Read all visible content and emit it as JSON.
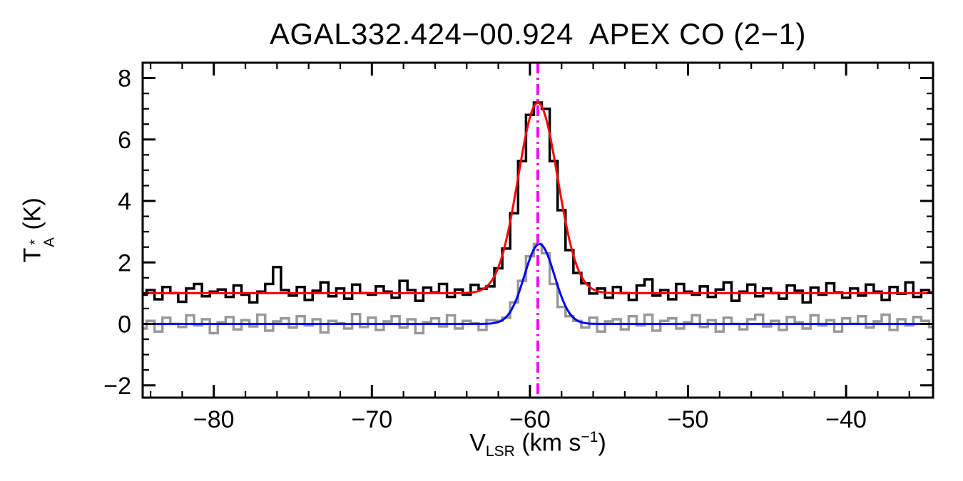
{
  "labels": {
    "y_symbol": "T",
    "y_sup": "*",
    "y_sub": "A",
    "y_unit": " (K)",
    "x_symbol": "V",
    "x_sub": "LSR",
    "x_unit_pre": " (km s",
    "x_sup": "−1",
    "x_unit_post": ")"
  },
  "chart_data": {
    "type": "line",
    "title": "AGAL332.424−00.924  APEX CO (2−1)",
    "xlabel": "V_LSR (km s^-1)",
    "ylabel": "T_A^* (K)",
    "xlim": [
      -84.5,
      -34.5
    ],
    "ylim": [
      -2.4,
      8.5
    ],
    "x_major_ticks": [
      -80,
      -70,
      -60,
      -50,
      -40
    ],
    "x_minor_step": 2,
    "y_major_ticks": [
      -2,
      0,
      2,
      4,
      6,
      8
    ],
    "y_minor_step": 0.5,
    "grid": false,
    "legend": false,
    "x_start": -84.5,
    "dx": 0.5,
    "series": [
      {
        "name": "offset-spectrum",
        "type": "histogram",
        "color": "#999999",
        "line_width": 3.5,
        "values": [
          -0.15,
          0.1,
          -0.25,
          0.2,
          0.0,
          -0.1,
          0.28,
          -0.05,
          0.15,
          -0.3,
          0.05,
          0.22,
          -0.18,
          0.12,
          -0.08,
          0.3,
          -0.22,
          0.08,
          0.18,
          -0.12,
          0.25,
          -0.05,
          0.15,
          -0.28,
          0.1,
          0.02,
          -0.15,
          0.32,
          -0.1,
          0.2,
          -0.2,
          0.08,
          0.25,
          -0.12,
          0.15,
          -0.3,
          0.05,
          0.18,
          -0.08,
          0.28,
          -0.15,
          0.1,
          0.02,
          -0.2,
          0.12,
          0.1,
          0.2,
          0.7,
          1.4,
          2.2,
          2.6,
          2.3,
          1.3,
          0.55,
          0.25,
          0.1,
          -0.12,
          0.2,
          -0.25,
          0.08,
          0.15,
          -0.18,
          0.25,
          -0.05,
          0.3,
          -0.22,
          0.1,
          0.18,
          -0.15,
          0.05,
          0.28,
          -0.1,
          0.12,
          -0.25,
          0.2,
          0.0,
          -0.18,
          0.15,
          0.3,
          -0.08,
          0.1,
          -0.2,
          0.22,
          0.05,
          -0.15,
          0.28,
          -0.05,
          0.12,
          -0.25,
          0.18,
          0.0,
          0.25,
          -0.12,
          0.08,
          0.3,
          -0.2,
          0.15,
          -0.05,
          0.22,
          0.1,
          -0.1
        ]
      },
      {
        "name": "observed-spectrum",
        "type": "histogram",
        "color": "#000000",
        "line_width": 3.5,
        "values": [
          0.95,
          1.1,
          0.8,
          1.2,
          1.0,
          0.72,
          1.15,
          1.3,
          0.9,
          1.05,
          1.12,
          0.88,
          1.25,
          0.95,
          0.7,
          1.05,
          1.3,
          1.85,
          1.1,
          0.92,
          1.2,
          0.78,
          1.08,
          1.35,
          0.9,
          1.15,
          0.82,
          1.28,
          1.0,
          0.95,
          1.22,
          1.05,
          0.85,
          1.4,
          1.1,
          0.75,
          1.18,
          1.02,
          1.3,
          0.88,
          1.12,
          0.95,
          1.27,
          1.14,
          1.22,
          1.81,
          2.45,
          3.6,
          5.3,
          6.8,
          7.2,
          7.0,
          5.3,
          3.7,
          2.4,
          1.66,
          1.32,
          0.99,
          1.15,
          0.85,
          1.2,
          1.0,
          0.78,
          1.25,
          1.45,
          0.92,
          1.1,
          0.8,
          1.3,
          1.05,
          0.95,
          1.22,
          0.88,
          1.12,
          1.35,
          0.75,
          1.05,
          1.28,
          0.9,
          1.15,
          1.0,
          0.82,
          1.25,
          1.08,
          0.7,
          1.18,
          0.95,
          1.32,
          1.02,
          0.85,
          1.15,
          0.92,
          1.28,
          1.05,
          0.78,
          1.2,
          0.98,
          1.35,
          0.88,
          1.1,
          1.02
        ]
      },
      {
        "name": "gaussian-fit-offset",
        "type": "gaussian",
        "color": "#0000ff",
        "line_width": 3,
        "baseline": 0.0,
        "amplitude": 2.6,
        "center": -59.4,
        "sigma": 0.95
      },
      {
        "name": "gaussian-fit-main",
        "type": "gaussian",
        "color": "#ff0000",
        "line_width": 3,
        "baseline": 1.0,
        "amplitude": 6.2,
        "center": -59.5,
        "sigma": 1.25
      }
    ],
    "vline": {
      "x": -59.5,
      "color": "#ff00ff",
      "line_width": 4,
      "dash": [
        15,
        6,
        3,
        6
      ]
    }
  }
}
